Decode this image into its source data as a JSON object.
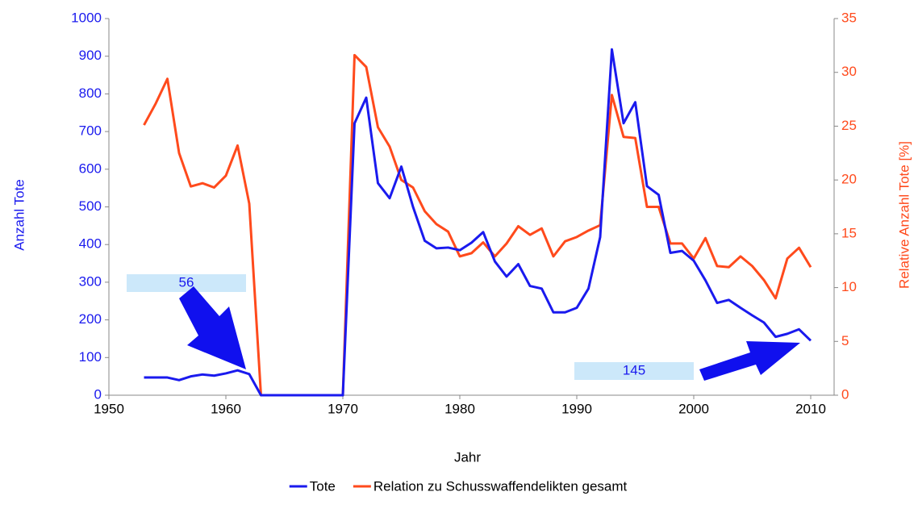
{
  "chart_data": {
    "type": "line",
    "xlabel": "Jahr",
    "ylabel": "Anzahl Tote",
    "y2label": "Relative Anzahl Tote [%]",
    "x": [
      1953,
      1954,
      1955,
      1956,
      1957,
      1958,
      1959,
      1960,
      1961,
      1962,
      1963,
      1964,
      1965,
      1966,
      1967,
      1968,
      1969,
      1970,
      1971,
      1972,
      1973,
      1974,
      1975,
      1976,
      1977,
      1978,
      1979,
      1980,
      1981,
      1982,
      1983,
      1984,
      1985,
      1986,
      1987,
      1988,
      1989,
      1990,
      1991,
      1992,
      1993,
      1994,
      1995,
      1996,
      1997,
      1998,
      1999,
      2000,
      2001,
      2002,
      2003,
      2004,
      2005,
      2006,
      2007,
      2008,
      2009,
      2010
    ],
    "series": [
      {
        "name": "Tote",
        "color": "#1a1aee",
        "axis": "y",
        "values": [
          47,
          47,
          47,
          40,
          50,
          55,
          52,
          58,
          66,
          56,
          0,
          0,
          0,
          0,
          0,
          0,
          0,
          0,
          722,
          790,
          563,
          523,
          607,
          500,
          410,
          390,
          392,
          385,
          405,
          433,
          355,
          315,
          348,
          290,
          283,
          220,
          220,
          232,
          283,
          420,
          918,
          722,
          778,
          555,
          532,
          378,
          383,
          357,
          305,
          245,
          253,
          232,
          212,
          193,
          155,
          163,
          175,
          145
        ]
      },
      {
        "name": "Relation zu Schusswaffendelikten gesamt",
        "color": "#ff4a1c",
        "axis": "y2",
        "values": [
          25.1,
          27.1,
          29.4,
          22.5,
          19.4,
          19.7,
          19.3,
          20.4,
          23.2,
          17.8,
          0,
          0,
          0,
          0,
          0,
          0,
          0,
          0,
          31.6,
          30.5,
          24.9,
          23.1,
          20.0,
          19.3,
          17.1,
          15.9,
          15.2,
          12.9,
          13.2,
          14.2,
          12.9,
          14.1,
          15.7,
          14.9,
          15.5,
          12.9,
          14.3,
          14.7,
          15.3,
          15.8,
          27.9,
          24.0,
          23.9,
          17.5,
          17.5,
          14.1,
          14.1,
          12.7,
          14.6,
          12.0,
          11.9,
          12.9,
          12.0,
          10.7,
          9.0,
          12.7,
          13.7,
          11.9
        ]
      }
    ],
    "xlim": [
      1950,
      2012
    ],
    "xticks": [
      1950,
      1960,
      1970,
      1980,
      1990,
      2000,
      2010
    ],
    "ylim": [
      0,
      1000
    ],
    "yticks": [
      0,
      100,
      200,
      300,
      400,
      500,
      600,
      700,
      800,
      900,
      1000
    ],
    "y2lim": [
      0,
      35
    ],
    "y2ticks": [
      0,
      5,
      10,
      15,
      20,
      25,
      30,
      35
    ],
    "annotations": [
      "56",
      "145"
    ],
    "legend": "bottom"
  }
}
